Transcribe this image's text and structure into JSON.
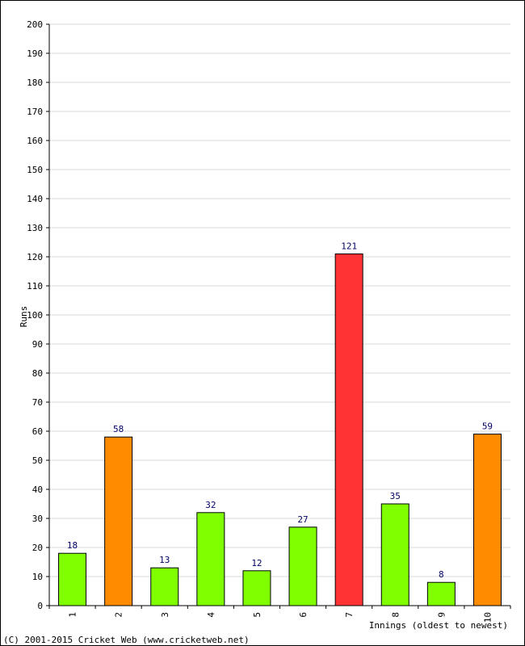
{
  "chart_data": {
    "type": "bar",
    "categories": [
      "1",
      "2",
      "3",
      "4",
      "5",
      "6",
      "7",
      "8",
      "9",
      "10"
    ],
    "values": [
      18,
      58,
      13,
      32,
      12,
      27,
      121,
      35,
      8,
      59
    ],
    "bar_colors": [
      "#80ff00",
      "#ff8c00",
      "#80ff00",
      "#80ff00",
      "#80ff00",
      "#80ff00",
      "#ff3333",
      "#80ff00",
      "#80ff00",
      "#ff8c00"
    ],
    "xlabel": "Innings (oldest to newest)",
    "ylabel": "Runs",
    "ylim": [
      0,
      200
    ],
    "yticks": [
      0,
      10,
      20,
      30,
      40,
      50,
      60,
      70,
      80,
      90,
      100,
      110,
      120,
      130,
      140,
      150,
      160,
      170,
      180,
      190,
      200
    ],
    "grid": true,
    "legend": "none"
  },
  "footer": {
    "copyright": "(C) 2001-2015 Cricket Web (www.cricketweb.net)"
  },
  "colors": {
    "grid": "#d8d8d8",
    "axis": "#000000",
    "label": "#000066"
  }
}
